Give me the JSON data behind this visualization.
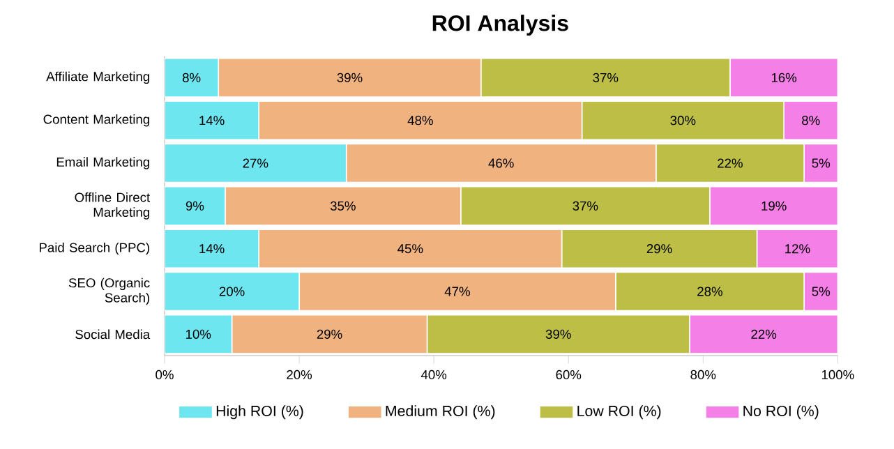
{
  "chart_data": {
    "type": "bar",
    "orientation": "horizontal",
    "stacked": true,
    "title": "ROI Analysis",
    "categories": [
      "Affiliate Marketing",
      "Content Marketing",
      "Email Marketing",
      "Offline Direct Marketing",
      "Paid Search (PPC)",
      "SEO (Organic Search)",
      "Social Media"
    ],
    "series": [
      {
        "name": "High ROI (%)",
        "color": "#6de6ef",
        "values": [
          8,
          14,
          27,
          9,
          14,
          20,
          10
        ],
        "value_labels": [
          "8%",
          "14%",
          "27%",
          "9%",
          "14%",
          "20%",
          "10%"
        ]
      },
      {
        "name": "Medium ROI (%)",
        "color": "#f0b27f",
        "values": [
          39,
          48,
          46,
          35,
          45,
          47,
          29
        ],
        "value_labels": [
          "39%",
          "48%",
          "46%",
          "35%",
          "45%",
          "47%",
          "29%"
        ]
      },
      {
        "name": "Low ROI (%)",
        "color": "#bdbe45",
        "values": [
          37,
          30,
          22,
          37,
          29,
          28,
          39
        ],
        "value_labels": [
          "37%",
          "30%",
          "22%",
          "37%",
          "29%",
          "28%",
          "39%"
        ]
      },
      {
        "name": "No ROI (%)",
        "color": "#f47fe6",
        "values": [
          16,
          8,
          5,
          19,
          12,
          5,
          22
        ],
        "value_labels": [
          "16%",
          "8%",
          "5%",
          "19%",
          "12%",
          "5%",
          "22%"
        ]
      }
    ],
    "xlim": [
      0,
      100
    ],
    "xticks": [
      {
        "value": 0,
        "label": "0%"
      },
      {
        "value": 20,
        "label": "20%"
      },
      {
        "value": 40,
        "label": "40%"
      },
      {
        "value": 60,
        "label": "60%"
      },
      {
        "value": 80,
        "label": "80%"
      },
      {
        "value": 100,
        "label": "100%"
      }
    ],
    "grid": false,
    "legend": "bottom"
  }
}
